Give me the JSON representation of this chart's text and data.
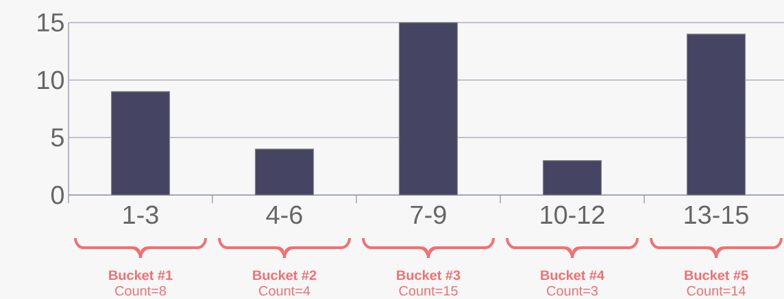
{
  "chart_data": {
    "type": "bar",
    "categories": [
      "1-3",
      "4-6",
      "7-9",
      "10-12",
      "13-15"
    ],
    "values": [
      9,
      4,
      15,
      3,
      14
    ],
    "color": "#454563",
    "ylim": [
      0,
      15
    ],
    "yticks": [
      0,
      5,
      10,
      15
    ],
    "grid": "y",
    "annotations": [
      "Bucket #1",
      "Count=8",
      "Bucket #2",
      "Count=4",
      "Bucket #3",
      "Count=15",
      "Bucket #4",
      "Count=3",
      "Bucket #5",
      "Count=14"
    ]
  }
}
